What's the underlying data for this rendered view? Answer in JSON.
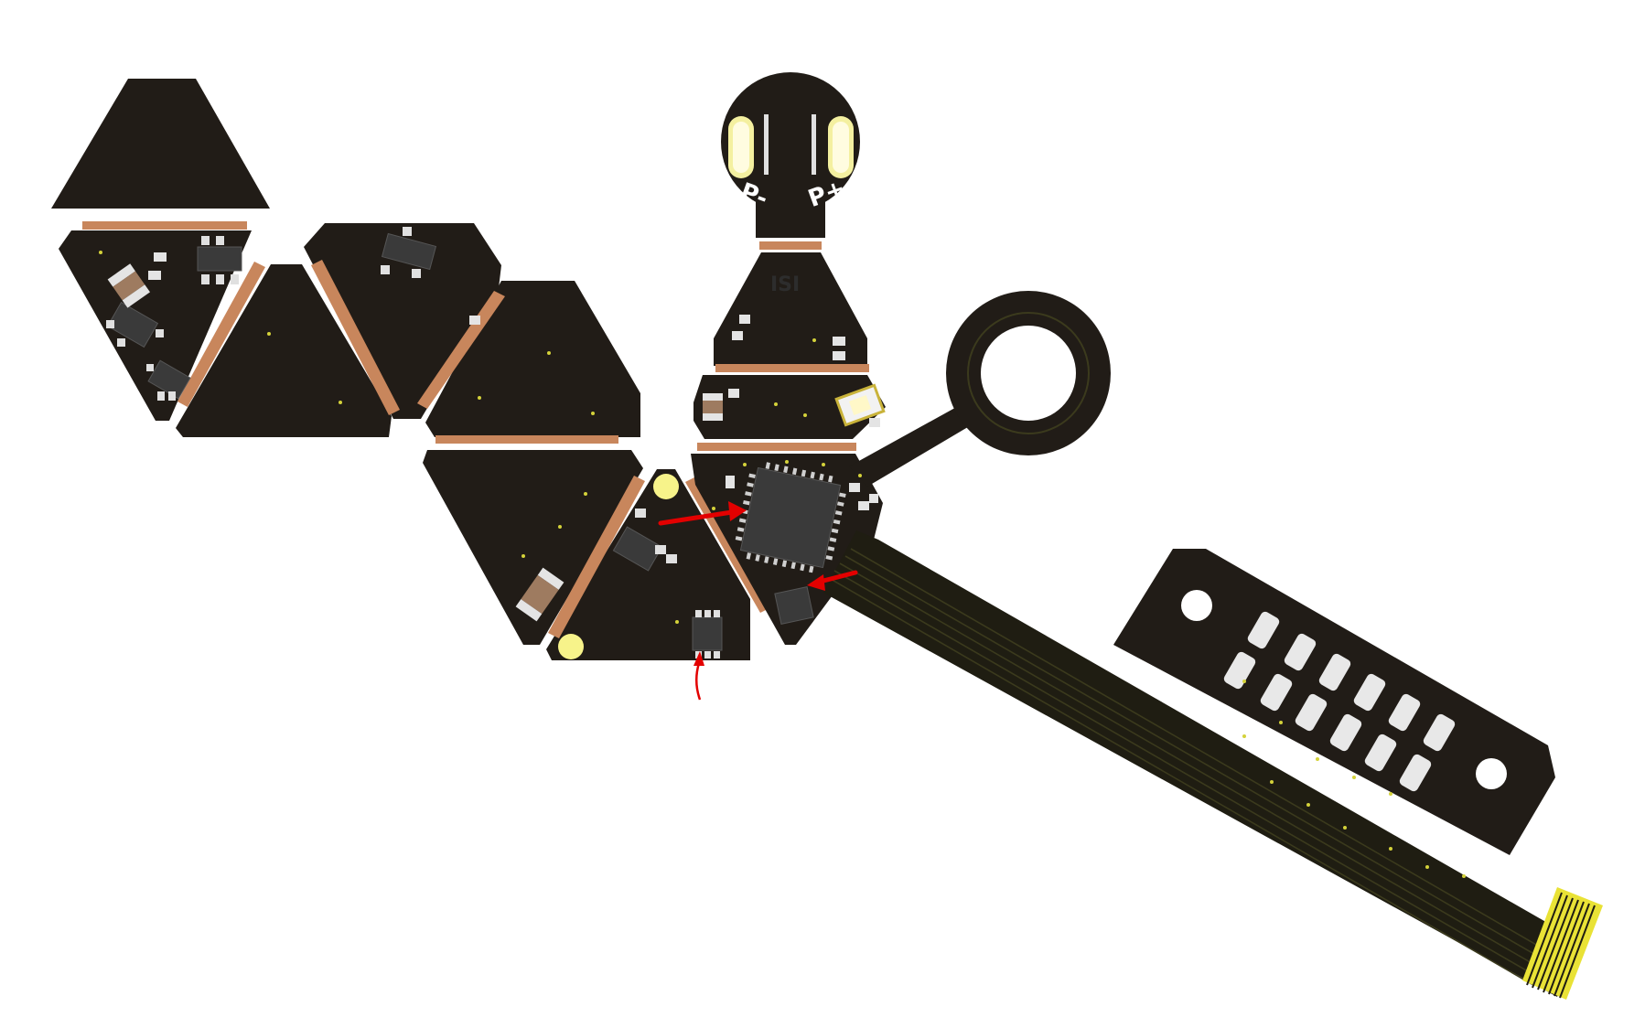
{
  "title": "",
  "silkscreen": {
    "battery_neg": "P-",
    "battery_pos": "P+",
    "ic_marking": "ISI"
  },
  "colors": {
    "board": "#211c17",
    "flex": "#1f1d12",
    "hinge_copper": "#c8865c",
    "pad_gold": "#e9e236",
    "annotation_arrow": "#e30000"
  },
  "annotations": {
    "arrow_count": 3,
    "targets": [
      "mcu-qfn-chip",
      "small-sensor-chip",
      "sot-6-chip"
    ]
  },
  "icons": [
    "battery-pad-icon",
    "mounting-ring-icon",
    "edge-connector-icon"
  ]
}
